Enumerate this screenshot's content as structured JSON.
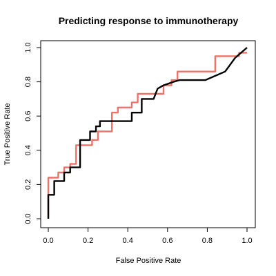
{
  "chart_data": {
    "type": "line",
    "title": "Predicting response to immunotherapy",
    "xlabel": "False Positive Rate",
    "ylabel": "True Positive Rate",
    "xlim": [
      0,
      1
    ],
    "ylim": [
      0,
      1
    ],
    "xticks": [
      "0.0",
      "0.2",
      "0.4",
      "0.6",
      "0.8",
      "1.0"
    ],
    "yticks": [
      "0.0",
      "0.2",
      "0.4",
      "0.6",
      "0.8",
      "1.0"
    ],
    "grid": false,
    "series": [
      {
        "color": "#f07167",
        "x": [
          0.0,
          0.0,
          0.05,
          0.05,
          0.08,
          0.08,
          0.11,
          0.11,
          0.14,
          0.14,
          0.22,
          0.22,
          0.25,
          0.25,
          0.32,
          0.32,
          0.35,
          0.35,
          0.42,
          0.42,
          0.45,
          0.45,
          0.52,
          0.58,
          0.58,
          0.62,
          0.62,
          0.65,
          0.65,
          0.84,
          0.84,
          0.96,
          0.96,
          1.0
        ],
        "y": [
          0.0,
          0.24,
          0.24,
          0.27,
          0.27,
          0.3,
          0.3,
          0.32,
          0.32,
          0.43,
          0.43,
          0.46,
          0.46,
          0.51,
          0.51,
          0.62,
          0.62,
          0.65,
          0.65,
          0.68,
          0.68,
          0.73,
          0.73,
          0.73,
          0.78,
          0.78,
          0.81,
          0.81,
          0.86,
          0.86,
          0.95,
          0.95,
          0.97,
          0.97
        ]
      },
      {
        "color": "#000000",
        "x": [
          0.0,
          0.0,
          0.03,
          0.03,
          0.08,
          0.08,
          0.11,
          0.11,
          0.16,
          0.16,
          0.21,
          0.21,
          0.24,
          0.24,
          0.26,
          0.26,
          0.35,
          0.4,
          0.42,
          0.42,
          0.47,
          0.47,
          0.5,
          0.53,
          0.55,
          0.58,
          0.63,
          0.66,
          0.79,
          0.89,
          0.94,
          1.0
        ],
        "y": [
          0.0,
          0.14,
          0.14,
          0.22,
          0.22,
          0.27,
          0.27,
          0.3,
          0.3,
          0.46,
          0.46,
          0.51,
          0.51,
          0.54,
          0.54,
          0.57,
          0.57,
          0.57,
          0.57,
          0.62,
          0.62,
          0.7,
          0.7,
          0.7,
          0.76,
          0.78,
          0.8,
          0.81,
          0.81,
          0.86,
          0.94,
          1.0
        ]
      }
    ]
  }
}
